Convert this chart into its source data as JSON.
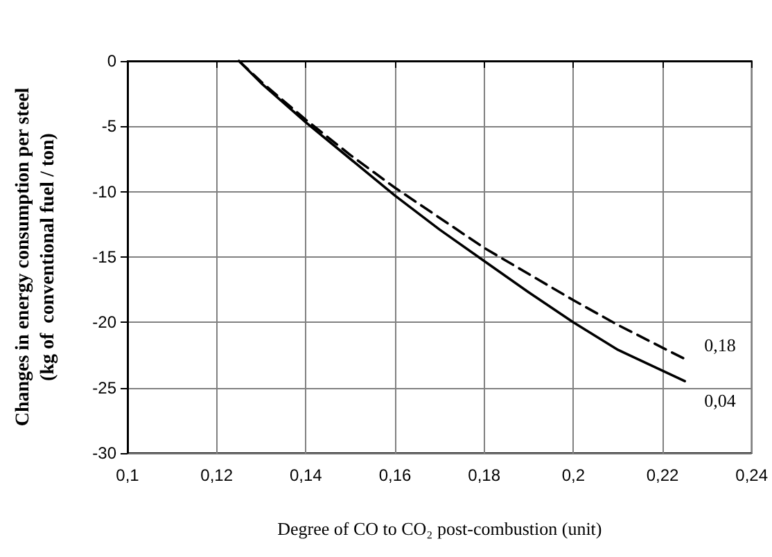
{
  "chart_data": {
    "type": "line",
    "xlabel": "Degree of CO to CO₂ post-combustion (unit)",
    "ylabel": "Changes in energy consumption per steel\n(kg of  conventional fuel / ton)",
    "xlim": [
      0.1,
      0.24
    ],
    "xticks": [
      {
        "value": 0.1,
        "label": "0,1"
      },
      {
        "value": 0.12,
        "label": "0,12"
      },
      {
        "value": 0.14,
        "label": "0,14"
      },
      {
        "value": 0.16,
        "label": "0,16"
      },
      {
        "value": 0.18,
        "label": "0,18"
      },
      {
        "value": 0.2,
        "label": "0,2"
      },
      {
        "value": 0.22,
        "label": "0,22"
      },
      {
        "value": 0.24,
        "label": "0,24"
      }
    ],
    "ylim": [
      -30,
      0
    ],
    "yticks": [
      -30,
      -25,
      -20,
      -15,
      -10,
      -5,
      0
    ],
    "grid": true,
    "legend": false,
    "marker": "none",
    "x": [
      0.125,
      0.13,
      0.14,
      0.15,
      0.16,
      0.17,
      0.18,
      0.19,
      0.2,
      0.21,
      0.225
    ],
    "series": [
      {
        "name": "0,18",
        "color": "#000000",
        "line_style": "dashed",
        "values": [
          0,
          -1.6,
          -4.5,
          -7.2,
          -9.7,
          -12,
          -14.3,
          -16.3,
          -18.3,
          -20.2,
          -22.8
        ]
      },
      {
        "name": "0,04",
        "color": "#000000",
        "line_style": "solid",
        "values": [
          0,
          -1.7,
          -4.7,
          -7.5,
          -10.3,
          -12.9,
          -15.3,
          -17.7,
          -20,
          -22.1,
          -24.5
        ]
      }
    ]
  }
}
